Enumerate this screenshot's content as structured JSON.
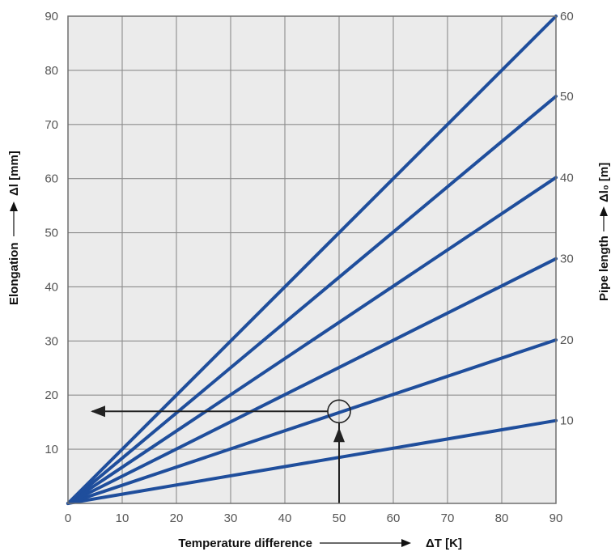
{
  "chart_data": {
    "type": "line",
    "xlabel": "Temperature difference",
    "xlabel_unit": "ΔT [K]",
    "ylabel": "Elongation",
    "ylabel_unit": "Δl [mm]",
    "y2label": "Pipe length",
    "y2label_unit": "Δl₀ [m]",
    "xlim": [
      0,
      90
    ],
    "ylim": [
      0,
      90
    ],
    "x_ticks": [
      "0",
      "10",
      "20",
      "30",
      "40",
      "50",
      "60",
      "70",
      "80",
      "90"
    ],
    "y_ticks": [
      "10",
      "20",
      "30",
      "40",
      "50",
      "60",
      "70",
      "80",
      "90"
    ],
    "grid": true,
    "series": [
      {
        "name": "10",
        "x": [
          0,
          90
        ],
        "y": [
          0,
          15.3
        ]
      },
      {
        "name": "20",
        "x": [
          0,
          90
        ],
        "y": [
          0,
          30.2
        ]
      },
      {
        "name": "30",
        "x": [
          0,
          90
        ],
        "y": [
          0,
          45.2
        ]
      },
      {
        "name": "40",
        "x": [
          0,
          90
        ],
        "y": [
          0,
          60.2
        ]
      },
      {
        "name": "50",
        "x": [
          0,
          90
        ],
        "y": [
          0,
          75.2
        ]
      },
      {
        "name": "60",
        "x": [
          0,
          90
        ],
        "y": [
          0,
          90
        ]
      }
    ],
    "example": {
      "x": 50,
      "y": 17
    }
  },
  "colors": {
    "line": "#1f4e9c",
    "plot_background": "#ebebeb",
    "grid": "#8c8c8c",
    "marker": "#222222"
  }
}
